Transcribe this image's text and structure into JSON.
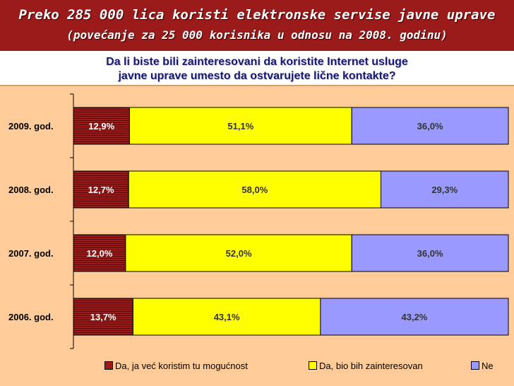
{
  "header": {
    "title": "Preko 285 000 lica koristi elektronske servise javne uprave",
    "subtitle": "(povećanje za 25 000 korisnika u odnosu na 2008. godinu)"
  },
  "question": {
    "line1": "Da li biste bili zainteresovani da koristite Internet usluge",
    "line2": "javne uprave umesto da ostvarujete lične kontakte?"
  },
  "colors": {
    "header_bg": "#9b1a1a",
    "panel_bg": "#ffcc99",
    "series": [
      "#9b1a1a",
      "#ffff00",
      "#9999ff"
    ]
  },
  "chart_data": {
    "type": "bar",
    "orientation": "horizontal",
    "stacked": true,
    "categories": [
      "2009. god.",
      "2008. god.",
      "2007. god.",
      "2006. god."
    ],
    "series": [
      {
        "name": "Da, ja već koristim tu mogućnost",
        "values": [
          12.9,
          12.7,
          12.0,
          13.7
        ],
        "labels": [
          "12,9%",
          "12,7%",
          "12,0%",
          "13,7%"
        ]
      },
      {
        "name": "Da, bio bih zainteresovan",
        "values": [
          51.1,
          58.0,
          52.0,
          43.1
        ],
        "labels": [
          "51,1%",
          "58,0%",
          "52,0%",
          "43,1%"
        ]
      },
      {
        "name": "Ne",
        "values": [
          36.0,
          29.3,
          36.0,
          43.2
        ],
        "labels": [
          "36,0%",
          "29,3%",
          "36,0%",
          "43,2%"
        ]
      }
    ],
    "xlim": [
      0,
      100
    ],
    "grid": false,
    "legend_position": "bottom"
  }
}
